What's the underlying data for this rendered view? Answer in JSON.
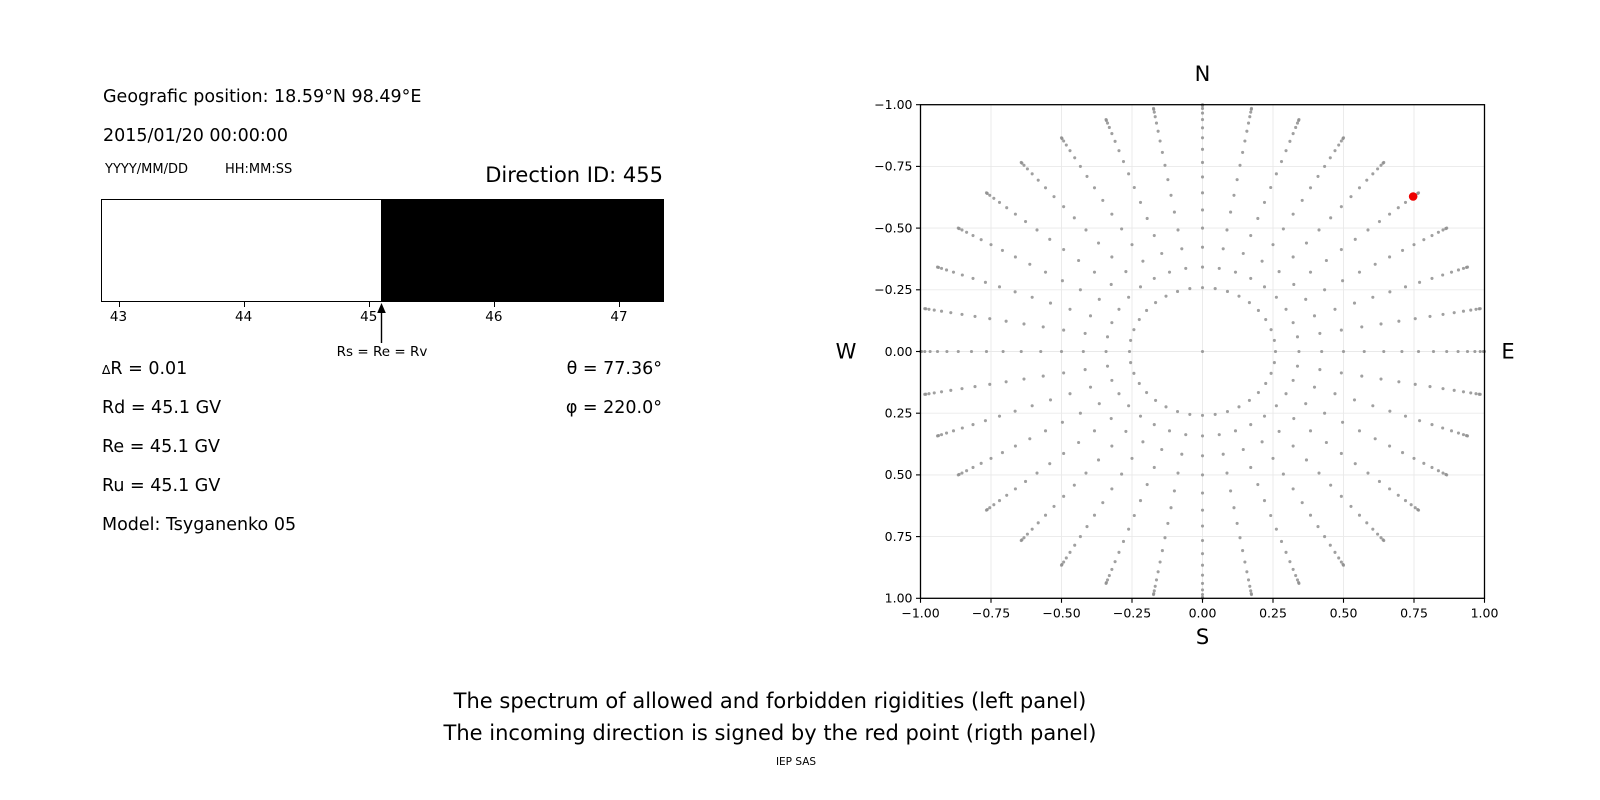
{
  "header": {
    "geo_position": "Geografic position: 18.59°N 98.49°E",
    "datetime": "2015/01/20 00:00:00",
    "date_format_label": "YYYY/MM/DD",
    "time_format_label": "HH:MM:SS",
    "direction_id": "Direction ID: 455"
  },
  "values": {
    "delta_symbol": "∆",
    "delta_r_rest": "R = 0.01",
    "rd": "Rd = 45.1 GV",
    "re": "Re = 45.1 GV",
    "ru": "Ru = 45.1 GV",
    "model": "Model: Tsyganenko 05",
    "theta": "θ = 77.36°",
    "phi": "φ = 220.0°"
  },
  "footer": {
    "caption_line1": "The spectrum of allowed and forbidden rigidities (left panel)",
    "caption_line2": "The incoming direction is signed by the red point (rigth panel)",
    "credit": "IEP SAS"
  },
  "chart_data": [
    {
      "type": "area",
      "name": "rigidity-spectrum",
      "x_range": [
        42.86,
        47.36
      ],
      "x_tick_values": [
        43,
        44,
        45,
        46,
        47
      ],
      "x_tick_labels": [
        "43",
        "44",
        "45",
        "46",
        "47"
      ],
      "regions": [
        {
          "name": "allowed",
          "from": 42.86,
          "to": 45.1,
          "color": "#ffffff"
        },
        {
          "name": "forbidden",
          "from": 45.1,
          "to": 47.36,
          "color": "#000000"
        }
      ],
      "annotation": {
        "label": "Rs = Re = Rv",
        "x": 45.1
      }
    },
    {
      "type": "scatter",
      "name": "incoming-direction-map",
      "title_top": "N",
      "label_bottom": "S",
      "label_left": "W",
      "label_right": "E",
      "xlim": [
        -1,
        1
      ],
      "ylim": [
        -1,
        1
      ],
      "tick_values": [
        -1,
        -0.75,
        -0.5,
        -0.25,
        0,
        0.25,
        0.5,
        0.75,
        1
      ],
      "x_tick_labels": [
        "−1.00",
        "−0.75",
        "−0.50",
        "−0.25",
        "0.00",
        "0.25",
        "0.50",
        "0.75",
        "1.00"
      ],
      "y_tick_labels": [
        "1.00",
        "0.75",
        "0.50",
        "0.25",
        "0.00",
        "−0.25",
        "−0.50",
        "−0.75",
        "−1.00"
      ],
      "grid": true,
      "grid_color": "#e9e9e9",
      "series": [
        {
          "name": "direction-grid",
          "marker_color": "#8f8f8f",
          "marker_radius_px": 1.55,
          "generator": {
            "azimuth_start_deg": 0,
            "azimuth_step_deg": 10,
            "azimuth_count": 36,
            "zenith_start_deg": 15,
            "zenith_step_deg": 5,
            "zenith_end_deg": 90,
            "radius_rule": "sin(zenith)",
            "include_center_point": true
          }
        },
        {
          "name": "incoming-direction",
          "marker_color": "#ee0000",
          "marker_radius_px": 4.3,
          "points": [
            [
              0.747,
              0.628
            ]
          ]
        }
      ]
    }
  ]
}
